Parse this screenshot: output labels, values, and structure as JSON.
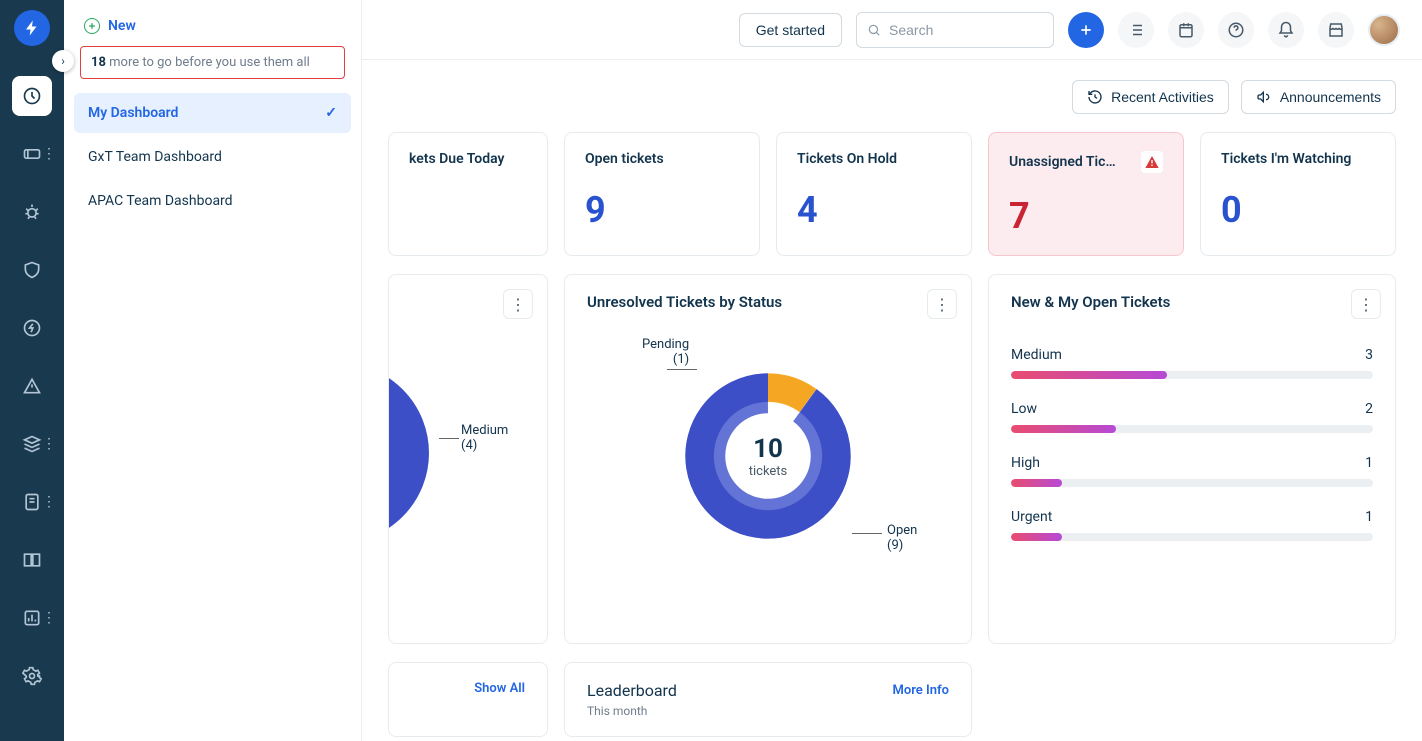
{
  "colors": {
    "rail_bg": "#19394f",
    "accent": "#2266e3",
    "kpi_value": "#2952cf",
    "danger_bg": "#fdecef",
    "danger_value": "#c92434",
    "bar_track": "#eceff2",
    "bar_fill_from": "#e94c6f",
    "bar_fill_to": "#b64ad6",
    "border": "#e6ebef"
  },
  "topbar": {
    "get_started": "Get started",
    "search_placeholder": "Search"
  },
  "flyout": {
    "new_label": "New",
    "hint_count": "18",
    "hint_text": " more to go before you use them all",
    "items": [
      {
        "label": "My Dashboard",
        "active": true
      },
      {
        "label": "GxT Team Dashboard",
        "active": false
      },
      {
        "label": "APAC Team Dashboard",
        "active": false
      }
    ]
  },
  "actions": {
    "recent": "Recent Activities",
    "announce": "Announcements"
  },
  "kpis": [
    {
      "title": "kets Due Today",
      "value": "",
      "variant": "truncated-left"
    },
    {
      "title": "Open tickets",
      "value": "9",
      "variant": "normal"
    },
    {
      "title": "Tickets On Hold",
      "value": "4",
      "variant": "normal"
    },
    {
      "title": "Unassigned Tic…",
      "value": "7",
      "variant": "danger"
    },
    {
      "title": "Tickets I'm Watching",
      "value": "0",
      "variant": "normal"
    }
  ],
  "panel_left": {
    "callout_label": "Medium",
    "callout_count": "(4)"
  },
  "panel_status": {
    "title": "Unresolved Tickets by Status",
    "donut": {
      "type": "donut",
      "total": "10",
      "unit": "tickets",
      "slices": [
        {
          "label": "Pending",
          "count": "(1)",
          "value": 1,
          "color": "#f5a623"
        },
        {
          "label": "Open",
          "count": "(9)",
          "value": 9,
          "color": "#3d4fc7"
        }
      ],
      "inner_color": "#6373d6"
    }
  },
  "panel_open": {
    "title": "New & My Open Tickets",
    "items": [
      {
        "label": "Medium",
        "value": "3",
        "pct": 43
      },
      {
        "label": "Low",
        "value": "2",
        "pct": 29
      },
      {
        "label": "High",
        "value": "1",
        "pct": 14
      },
      {
        "label": "Urgent",
        "value": "1",
        "pct": 14
      }
    ]
  },
  "bottom": {
    "show_all": "Show All",
    "leaderboard": "Leaderboard",
    "leaderboard_sub": "This month",
    "more_info": "More Info"
  }
}
